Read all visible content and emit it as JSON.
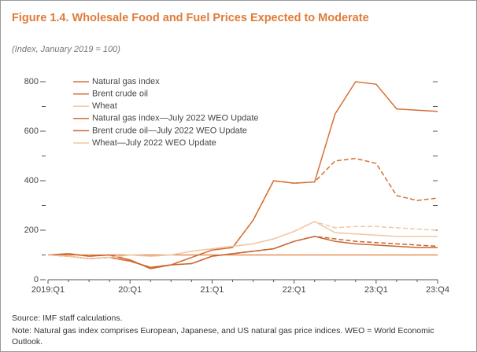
{
  "chart_data": {
    "type": "line",
    "title": "Figure 1.4.  Wholesale Food and Fuel Prices Expected to Moderate",
    "subtitle": "(Index, January 2019 = 100)",
    "source": "Source: IMF staff calculations.",
    "note": "Note: Natural gas index comprises European, Japanese, and US natural gas price indices. WEO = World Economic Outlook.",
    "categories": [
      "2019:Q1",
      null,
      null,
      null,
      "20:Q1",
      null,
      null,
      null,
      "21:Q1",
      null,
      null,
      null,
      "22:Q1",
      null,
      null,
      null,
      "23:Q1",
      null,
      null,
      "23:Q4"
    ],
    "ylim": [
      0,
      800
    ],
    "yticks": [
      0,
      200,
      400,
      600,
      800
    ],
    "yminorticks": [
      100,
      300,
      500,
      700
    ],
    "reference_line": 100,
    "reference_color": "#e07b39",
    "series": [
      {
        "name": "Natural gas index",
        "color": "#d86f32",
        "dashed": false,
        "values": [
          100,
          95,
          85,
          90,
          75,
          50,
          60,
          90,
          120,
          130,
          240,
          400,
          390,
          395,
          670,
          800,
          790,
          690,
          685,
          680
        ]
      },
      {
        "name": "Brent crude oil",
        "color": "#c9652f",
        "dashed": false,
        "values": [
          100,
          105,
          95,
          100,
          80,
          45,
          60,
          65,
          95,
          105,
          115,
          125,
          155,
          175,
          155,
          145,
          140,
          135,
          130,
          130
        ]
      },
      {
        "name": "Wheat",
        "color": "#f2c6a4",
        "dashed": false,
        "values": [
          100,
          95,
          85,
          90,
          100,
          95,
          100,
          115,
          125,
          135,
          145,
          165,
          195,
          235,
          190,
          185,
          180,
          175,
          175,
          175
        ]
      },
      {
        "name": "Natural gas index—July 2022 WEO Update",
        "color": "#d86f32",
        "dashed": true,
        "values": [
          100,
          95,
          85,
          90,
          75,
          50,
          60,
          90,
          120,
          130,
          240,
          400,
          390,
          395,
          480,
          490,
          470,
          340,
          320,
          330
        ]
      },
      {
        "name": "Brent crude oil—July 2022 WEO Update",
        "color": "#c9652f",
        "dashed": true,
        "values": [
          100,
          105,
          95,
          100,
          80,
          45,
          60,
          65,
          95,
          105,
          115,
          125,
          155,
          175,
          165,
          155,
          150,
          145,
          140,
          135
        ]
      },
      {
        "name": "Wheat—July 2022 WEO Update",
        "color": "#f2c6a4",
        "dashed": true,
        "values": [
          100,
          95,
          85,
          90,
          100,
          95,
          100,
          115,
          125,
          135,
          145,
          165,
          195,
          235,
          210,
          215,
          215,
          210,
          205,
          200
        ]
      }
    ]
  }
}
